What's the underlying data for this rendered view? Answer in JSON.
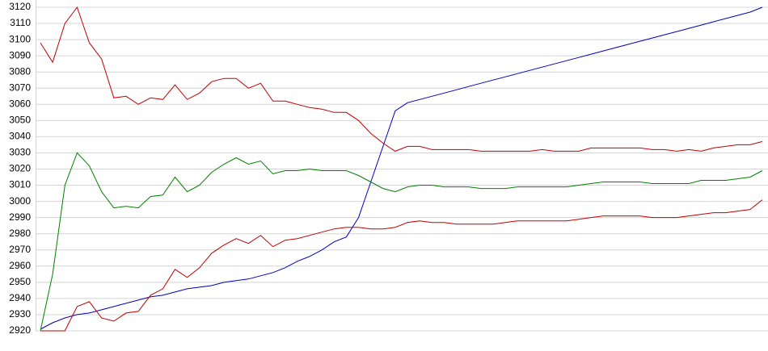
{
  "chart_data": {
    "type": "line",
    "ylim": [
      2920,
      3120
    ],
    "yticks": [
      2920,
      2930,
      2940,
      2950,
      2960,
      2970,
      2980,
      2990,
      3000,
      3010,
      3020,
      3030,
      3040,
      3050,
      3060,
      3070,
      3080,
      3090,
      3100,
      3110,
      3120
    ],
    "grid": true,
    "series": [
      {
        "color": "#0000c0",
        "values": [
          2921,
          2925,
          2928,
          2930,
          2931,
          2933,
          2935,
          2937,
          2939,
          2941,
          2942,
          2944,
          2946,
          2947,
          2948,
          2950,
          2951,
          2952,
          2954,
          2956,
          2959,
          2963,
          2966,
          2970,
          2975,
          2978,
          2990,
          3012,
          3034,
          3056,
          3061,
          3063,
          3065,
          3067,
          3069,
          3071,
          3073,
          3075,
          3077,
          3079,
          3081,
          3083,
          3085,
          3087,
          3089,
          3091,
          3093,
          3095,
          3097,
          3099,
          3101,
          3103,
          3105,
          3107,
          3109,
          3111,
          3113,
          3115,
          3117,
          3120
        ]
      },
      {
        "color": "#c00000",
        "values": [
          3098,
          3086,
          3110,
          3120,
          3098,
          3088,
          3064,
          3065,
          3060,
          3064,
          3063,
          3072,
          3063,
          3067,
          3074,
          3076,
          3076,
          3070,
          3073,
          3062,
          3062,
          3060,
          3058,
          3057,
          3055,
          3055,
          3050,
          3042,
          3036,
          3031,
          3034,
          3034,
          3032,
          3032,
          3032,
          3032,
          3031,
          3031,
          3031,
          3031,
          3031,
          3032,
          3031,
          3031,
          3031,
          3033,
          3033,
          3033,
          3033,
          3033,
          3032,
          3032,
          3031,
          3032,
          3031,
          3033,
          3034,
          3035,
          3035,
          3037
        ]
      },
      {
        "color": "#008000",
        "values": [
          2920,
          2955,
          3010,
          3030,
          3022,
          3006,
          2996,
          2997,
          2996,
          3003,
          3004,
          3015,
          3006,
          3010,
          3018,
          3023,
          3027,
          3023,
          3025,
          3017,
          3019,
          3019,
          3020,
          3019,
          3019,
          3019,
          3016,
          3012,
          3008,
          3006,
          3009,
          3010,
          3010,
          3009,
          3009,
          3009,
          3008,
          3008,
          3008,
          3009,
          3009,
          3009,
          3009,
          3009,
          3010,
          3011,
          3012,
          3012,
          3012,
          3012,
          3011,
          3011,
          3011,
          3011,
          3013,
          3013,
          3013,
          3014,
          3015,
          3019
        ]
      },
      {
        "color": "#c00000",
        "values": [
          2920,
          2920,
          2920,
          2935,
          2938,
          2928,
          2926,
          2931,
          2932,
          2942,
          2946,
          2958,
          2953,
          2959,
          2968,
          2973,
          2977,
          2974,
          2979,
          2972,
          2976,
          2977,
          2979,
          2981,
          2983,
          2984,
          2984,
          2983,
          2983,
          2984,
          2987,
          2988,
          2987,
          2987,
          2986,
          2986,
          2986,
          2986,
          2987,
          2988,
          2988,
          2988,
          2988,
          2988,
          2989,
          2990,
          2991,
          2991,
          2991,
          2991,
          2990,
          2990,
          2990,
          2991,
          2992,
          2993,
          2993,
          2994,
          2995,
          3001
        ]
      }
    ]
  }
}
